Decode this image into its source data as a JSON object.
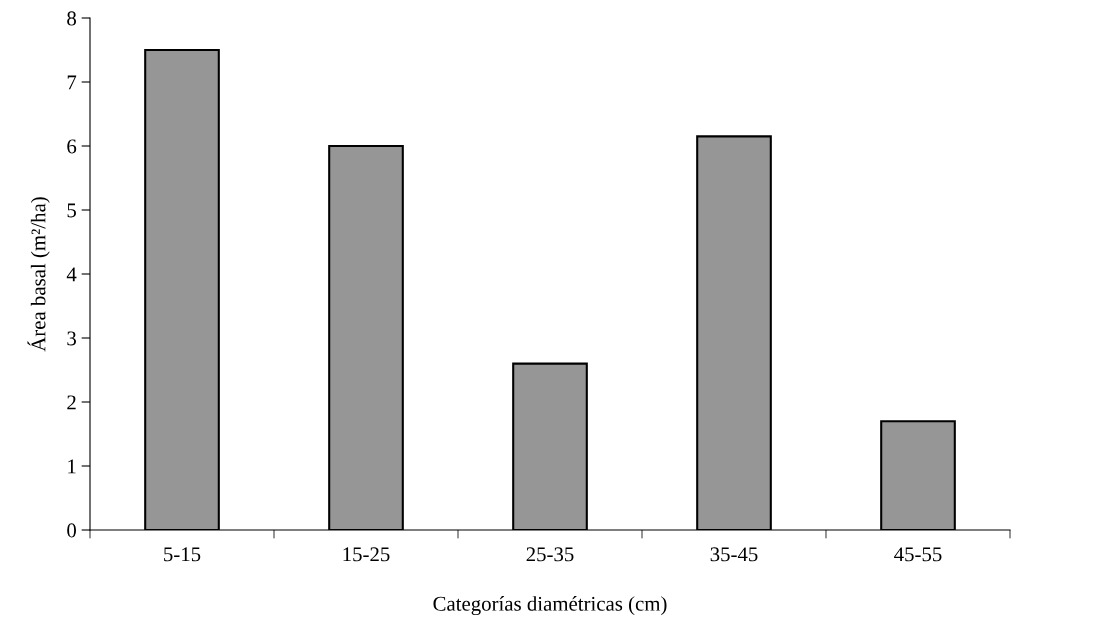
{
  "chart_data": {
    "type": "bar",
    "xlabel": "Categorías diamétricas (cm)",
    "ylabel": "Área basal (m²/ha)",
    "categories": [
      "5-15",
      "15-25",
      "25-35",
      "35-45",
      "45-55"
    ],
    "values": [
      7.5,
      6.0,
      2.6,
      6.15,
      1.7
    ],
    "color": "#969696",
    "ylim": [
      0,
      8
    ],
    "yticks": [
      0,
      1,
      2,
      3,
      4,
      5,
      6,
      7,
      8
    ],
    "grid": false,
    "legend": false
  }
}
